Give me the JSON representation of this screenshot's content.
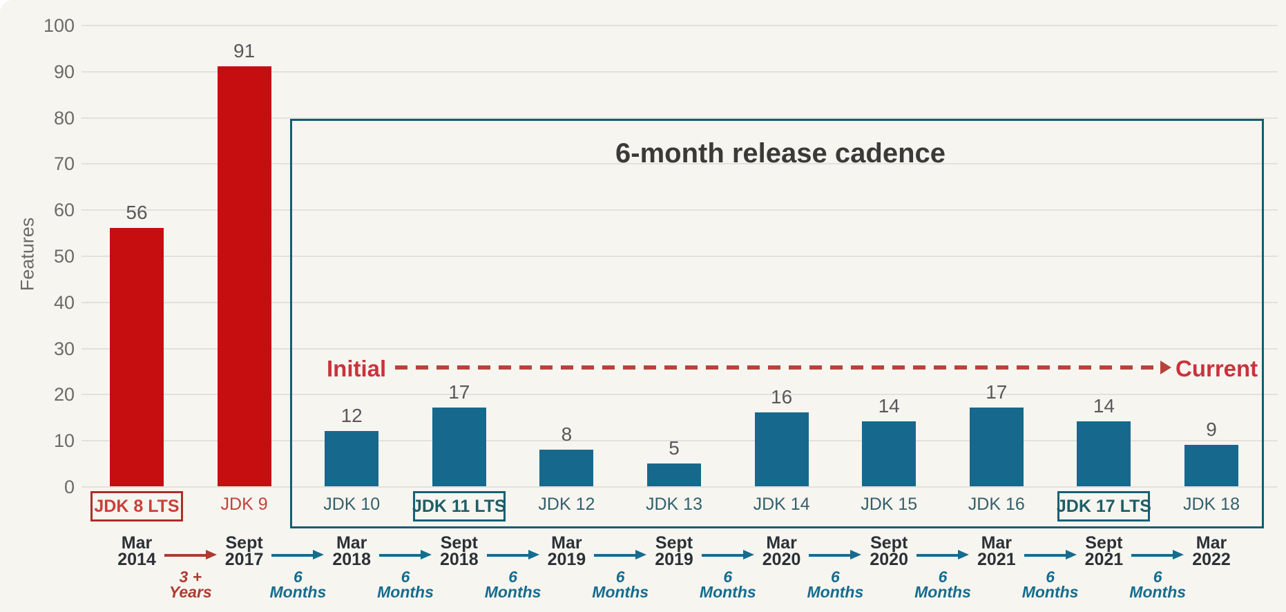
{
  "chart_data": {
    "type": "bar",
    "title": "6-month release cadence",
    "ylabel": "Features",
    "ylim": [
      0,
      100
    ],
    "ytick_step": 10,
    "grid": "horizontal",
    "categories": [
      "JDK 8 LTS",
      "JDK 9",
      "JDK 10",
      "JDK 11 LTS",
      "JDK 12",
      "JDK 13",
      "JDK 14",
      "JDK 15",
      "JDK 16",
      "JDK 17 LTS",
      "JDK 18"
    ],
    "values": [
      56,
      91,
      12,
      17,
      8,
      5,
      16,
      14,
      17,
      14,
      9
    ],
    "groups": [
      "legacy",
      "legacy",
      "cadence",
      "cadence",
      "cadence",
      "cadence",
      "cadence",
      "cadence",
      "cadence",
      "cadence",
      "cadence"
    ],
    "lts": [
      true,
      false,
      false,
      true,
      false,
      false,
      false,
      false,
      false,
      true,
      false
    ],
    "cadence_box_contains": [
      "JDK 10",
      "JDK 11 LTS",
      "JDK 12",
      "JDK 13",
      "JDK 14",
      "JDK 15",
      "JDK 16",
      "JDK 17 LTS",
      "JDK 18"
    ],
    "annotations": {
      "initial_label": "Initial",
      "current_label": "Current",
      "dashed_arrow": "Initial to Current dashed arrow at approx y-value 26"
    },
    "timeline": {
      "dates": [
        [
          "Mar",
          "2014"
        ],
        [
          "Sept",
          "2017"
        ],
        [
          "Mar",
          "2018"
        ],
        [
          "Sept",
          "2018"
        ],
        [
          "Mar",
          "2019"
        ],
        [
          "Sept",
          "2019"
        ],
        [
          "Mar",
          "2020"
        ],
        [
          "Sept",
          "2020"
        ],
        [
          "Mar",
          "2021"
        ],
        [
          "Sept",
          "2021"
        ],
        [
          "Mar",
          "2022"
        ]
      ],
      "intervals": [
        {
          "lines": [
            "3 +",
            "Years"
          ],
          "group": "legacy"
        },
        {
          "lines": [
            "6",
            "Months"
          ],
          "group": "cadence"
        },
        {
          "lines": [
            "6",
            "Months"
          ],
          "group": "cadence"
        },
        {
          "lines": [
            "6",
            "Months"
          ],
          "group": "cadence"
        },
        {
          "lines": [
            "6",
            "Months"
          ],
          "group": "cadence"
        },
        {
          "lines": [
            "6",
            "Months"
          ],
          "group": "cadence"
        },
        {
          "lines": [
            "6",
            "Months"
          ],
          "group": "cadence"
        },
        {
          "lines": [
            "6",
            "Months"
          ],
          "group": "cadence"
        },
        {
          "lines": [
            "6",
            "Months"
          ],
          "group": "cadence"
        },
        {
          "lines": [
            "6",
            "Months"
          ],
          "group": "cadence"
        }
      ]
    }
  },
  "colors": {
    "background": "#f7f5f0",
    "legacy_bar": "#c60d10",
    "cadence_bar": "#16698c",
    "cadence_box_border": "#135d74",
    "legacy_arrow": "#ab3c31",
    "cadence_arrow": "#156c8e",
    "initial_current_red": "#c9333c",
    "dash_red": "#b5443c",
    "value_label_gray": "#57585a",
    "axis_gray": "#6a6a67",
    "date_text": "#2b3136",
    "title_text": "#3a3a38"
  }
}
